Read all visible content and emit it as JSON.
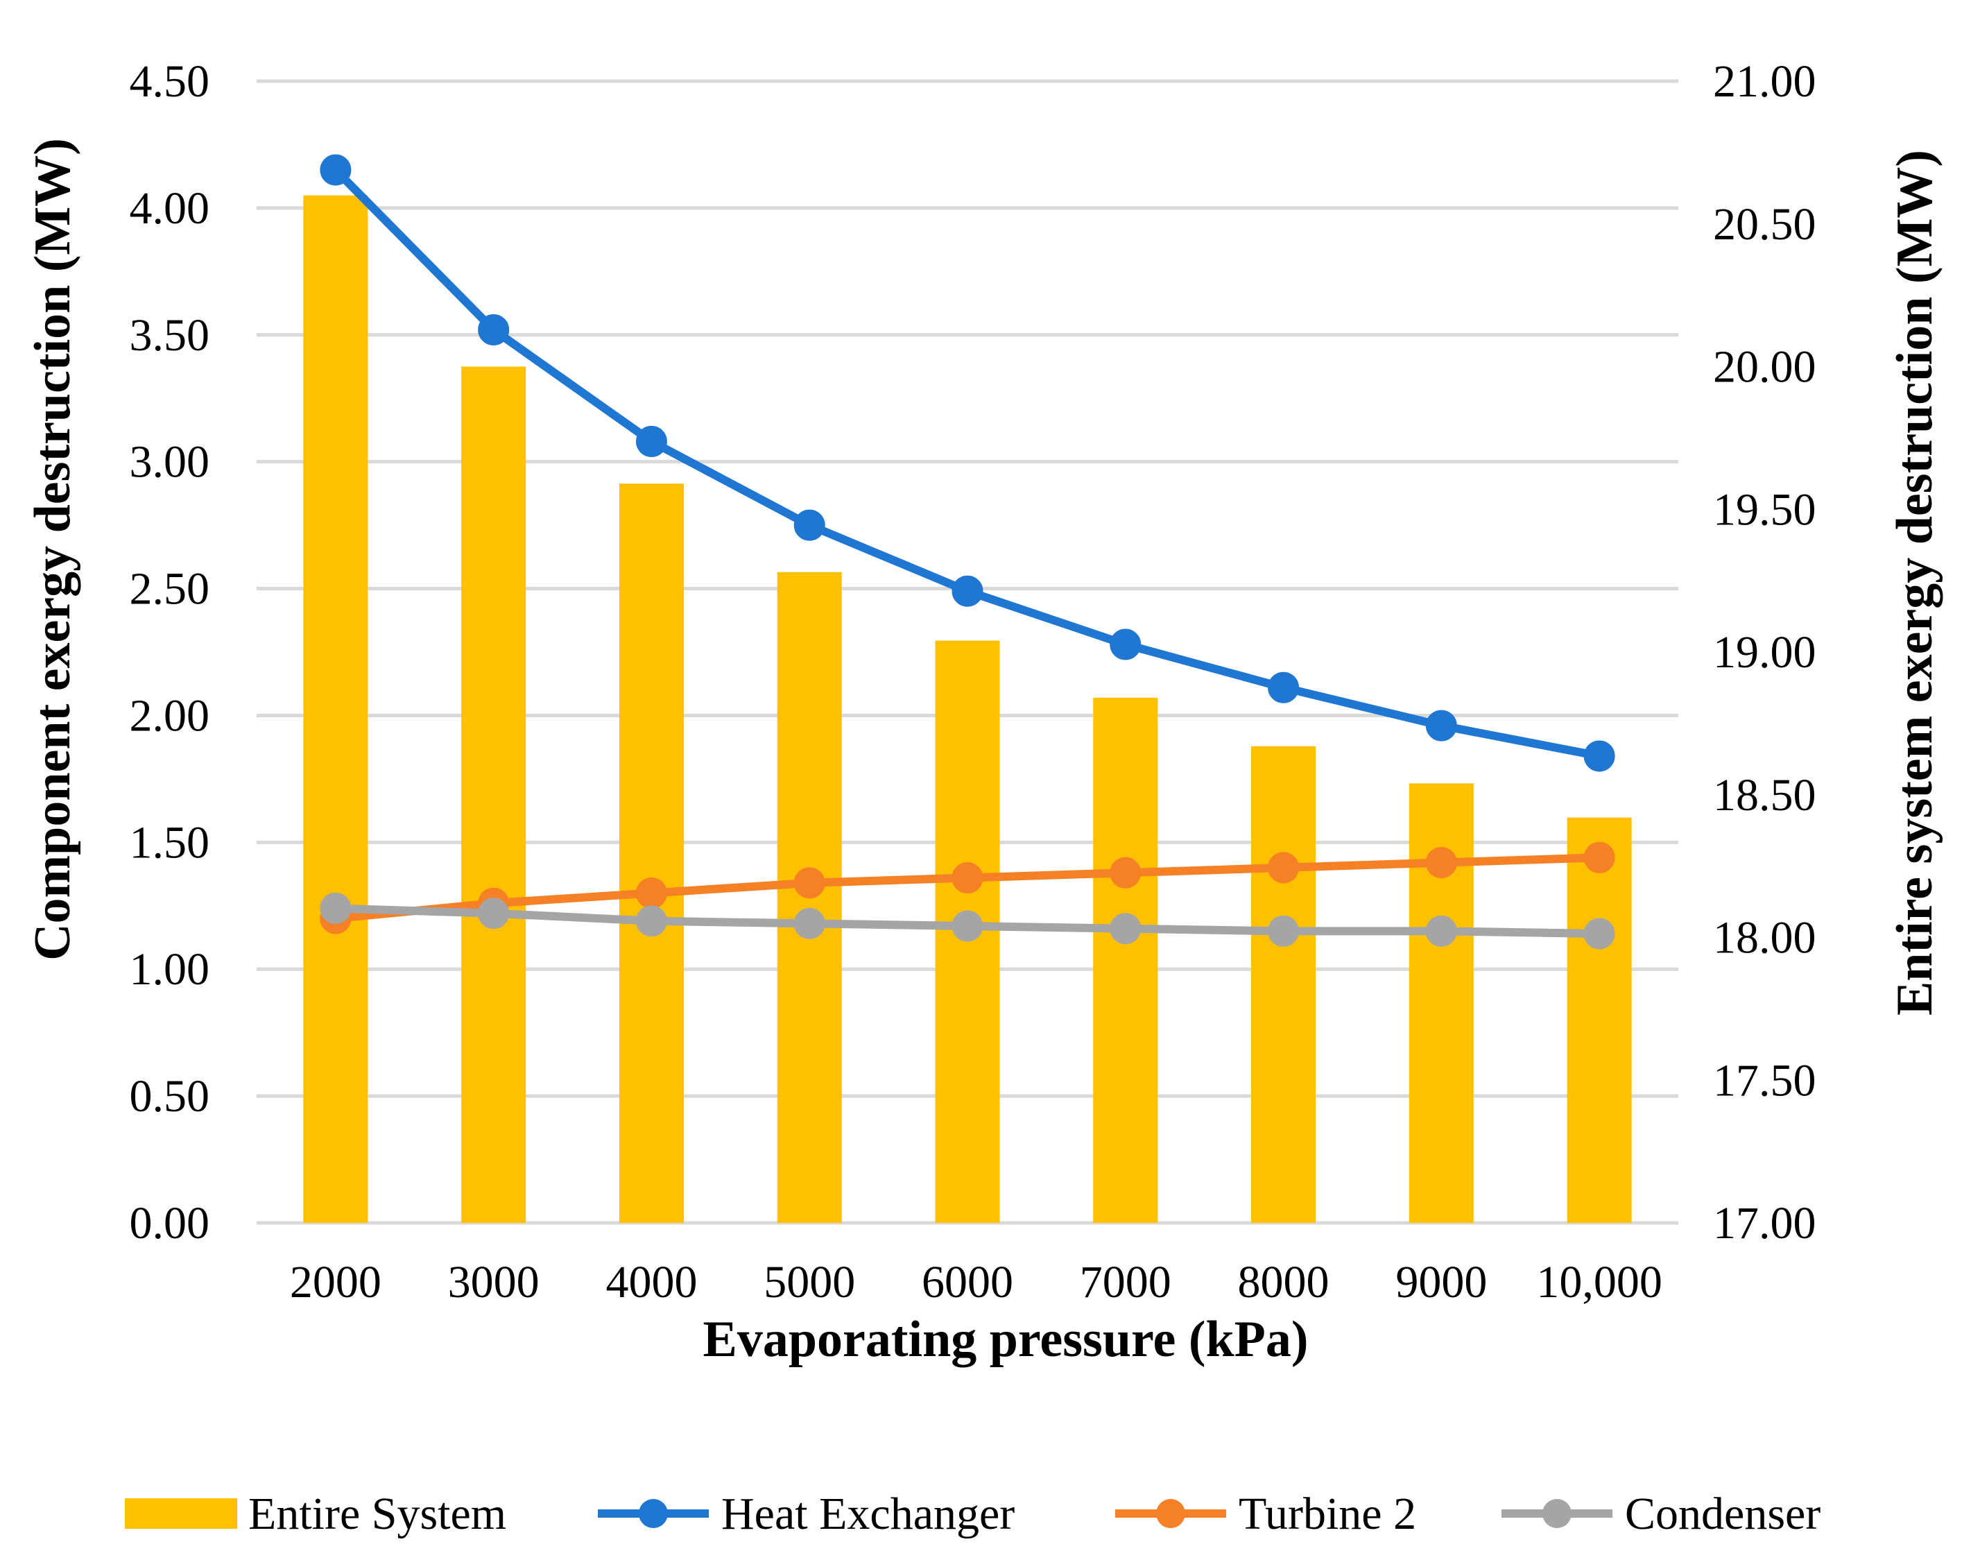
{
  "chart_data": {
    "type": "bar+line",
    "xlabel": "Evaporating pressure (kPa)",
    "ylabel_left": "Component exergy destruction (MW)",
    "ylabel_right": "Entire system exergy destruction (MW)",
    "categories": [
      "2000",
      "3000",
      "4000",
      "5000",
      "6000",
      "7000",
      "8000",
      "9000",
      "10,000"
    ],
    "y_left": {
      "range": [
        0,
        4.5
      ],
      "ticks": [
        0,
        0.5,
        1,
        1.5,
        2,
        2.5,
        3,
        3.5,
        4,
        4.5
      ],
      "tick_labels": [
        "0.00",
        "0.50",
        "1.00",
        "1.50",
        "2.00",
        "2.50",
        "3.00",
        "3.50",
        "4.00",
        "4.50"
      ]
    },
    "y_right": {
      "range": [
        17,
        21
      ],
      "ticks": [
        17,
        17.5,
        18,
        18.5,
        19,
        19.5,
        20,
        20.5,
        21
      ],
      "tick_labels": [
        "17.00",
        "17.50",
        "18.00",
        "18.50",
        "19.00",
        "19.50",
        "20.00",
        "20.50",
        "21.00"
      ]
    },
    "grid": true,
    "legend_position": "bottom",
    "series": [
      {
        "name": "Entire System",
        "type": "bar",
        "axis": "right",
        "color": "#FFC000",
        "values": [
          20.6,
          20.0,
          19.59,
          19.28,
          19.04,
          18.84,
          18.67,
          18.54,
          18.42
        ]
      },
      {
        "name": "Heat Exchanger",
        "type": "line",
        "axis": "left",
        "color": "#1F77D2",
        "values": [
          4.15,
          3.52,
          3.08,
          2.75,
          2.49,
          2.28,
          2.11,
          1.96,
          1.84
        ]
      },
      {
        "name": "Turbine 2",
        "type": "line",
        "axis": "left",
        "color": "#F58025",
        "values": [
          1.2,
          1.26,
          1.3,
          1.34,
          1.36,
          1.38,
          1.4,
          1.42,
          1.44
        ]
      },
      {
        "name": "Condenser",
        "type": "line",
        "axis": "left",
        "color": "#A5A5A5",
        "values": [
          1.24,
          1.22,
          1.19,
          1.18,
          1.17,
          1.16,
          1.15,
          1.15,
          1.14
        ]
      }
    ]
  }
}
